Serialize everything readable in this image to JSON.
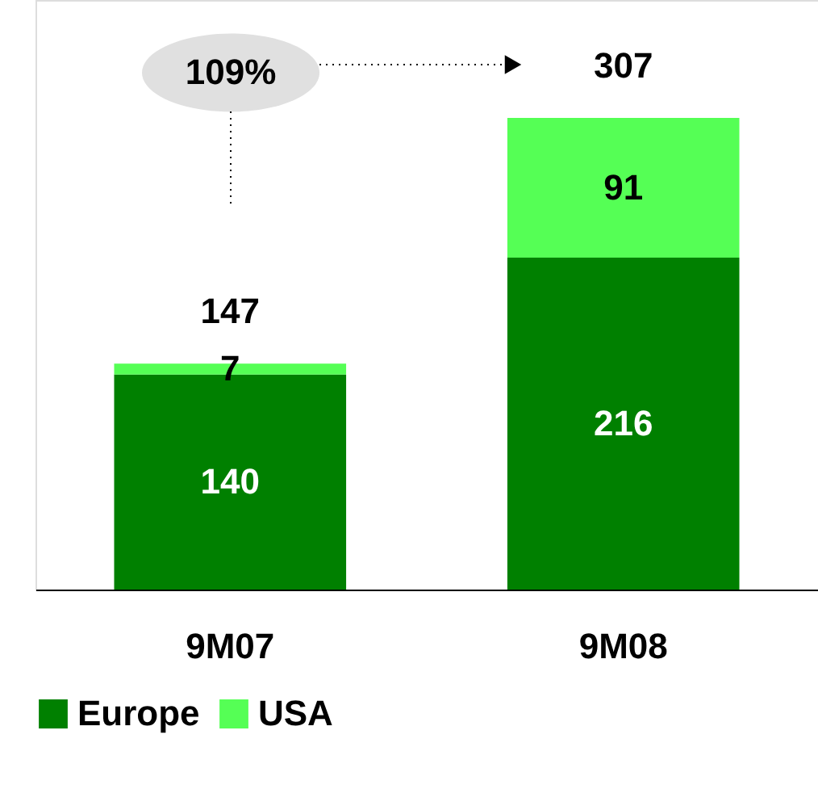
{
  "chart_data": {
    "type": "bar",
    "stacked": true,
    "categories": [
      "9M07",
      "9M08"
    ],
    "series": [
      {
        "name": "Europe",
        "color": "#008000",
        "values": [
          140,
          216
        ]
      },
      {
        "name": "USA",
        "color": "#55ff55",
        "values": [
          7,
          91
        ]
      }
    ],
    "data_labels": true,
    "totals": [
      "147",
      "307"
    ],
    "legend": "bottom",
    "grid": false,
    "annotations": [
      "109%"
    ]
  }
}
